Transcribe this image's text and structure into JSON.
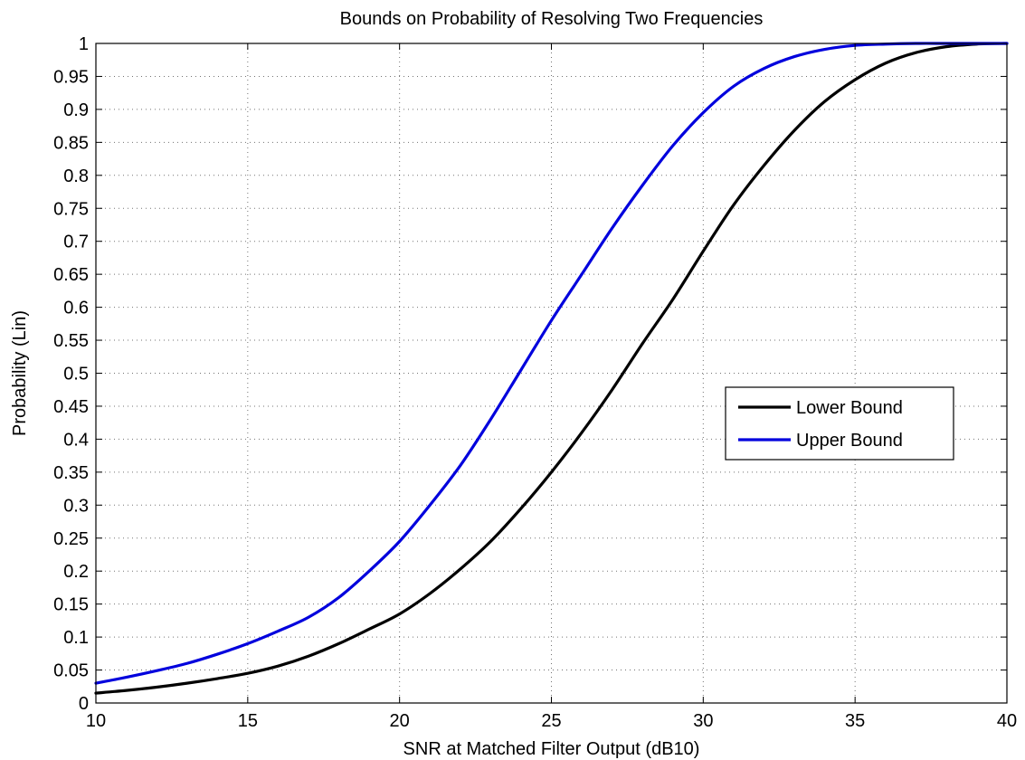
{
  "chart_data": {
    "type": "line",
    "title": "Bounds on Probability of Resolving Two Frequencies",
    "xlabel": "SNR at Matched Filter Output (dB10)",
    "ylabel": "Probability (Lin)",
    "xlim": [
      10,
      40
    ],
    "ylim": [
      0,
      1
    ],
    "xticks": [
      10,
      15,
      20,
      25,
      30,
      35,
      40
    ],
    "yticks": [
      0,
      0.05,
      0.1,
      0.15,
      0.2,
      0.25,
      0.3,
      0.35,
      0.4,
      0.45,
      0.5,
      0.55,
      0.6,
      0.65,
      0.7,
      0.75,
      0.8,
      0.85,
      0.9,
      0.95,
      1
    ],
    "ytick_labels": [
      "0",
      "0.05",
      "0.1",
      "0.15",
      "0.2",
      "0.25",
      "0.3",
      "0.35",
      "0.4",
      "0.45",
      "0.5",
      "0.55",
      "0.6",
      "0.65",
      "0.7",
      "0.75",
      "0.8",
      "0.85",
      "0.9",
      "0.95",
      "1"
    ],
    "grid": true,
    "legend_position": "right",
    "x": [
      10,
      11,
      12,
      13,
      14,
      15,
      16,
      17,
      18,
      19,
      20,
      21,
      22,
      23,
      24,
      25,
      26,
      27,
      28,
      29,
      30,
      31,
      32,
      33,
      34,
      35,
      36,
      37,
      38,
      39,
      40
    ],
    "series": [
      {
        "name": "Lower Bound",
        "color": "#000000",
        "values": [
          0.015,
          0.019,
          0.024,
          0.03,
          0.037,
          0.045,
          0.056,
          0.071,
          0.09,
          0.112,
          0.135,
          0.166,
          0.203,
          0.245,
          0.295,
          0.35,
          0.41,
          0.475,
          0.545,
          0.612,
          0.685,
          0.755,
          0.815,
          0.868,
          0.912,
          0.945,
          0.97,
          0.986,
          0.995,
          0.999,
          1.0
        ]
      },
      {
        "name": "Upper Bound",
        "color": "#0000dd",
        "values": [
          0.03,
          0.039,
          0.049,
          0.06,
          0.074,
          0.09,
          0.109,
          0.13,
          0.16,
          0.2,
          0.245,
          0.3,
          0.36,
          0.43,
          0.505,
          0.58,
          0.65,
          0.72,
          0.785,
          0.845,
          0.895,
          0.935,
          0.962,
          0.98,
          0.991,
          0.997,
          0.999,
          1.0,
          1.0,
          1.0,
          1.0
        ]
      }
    ]
  }
}
